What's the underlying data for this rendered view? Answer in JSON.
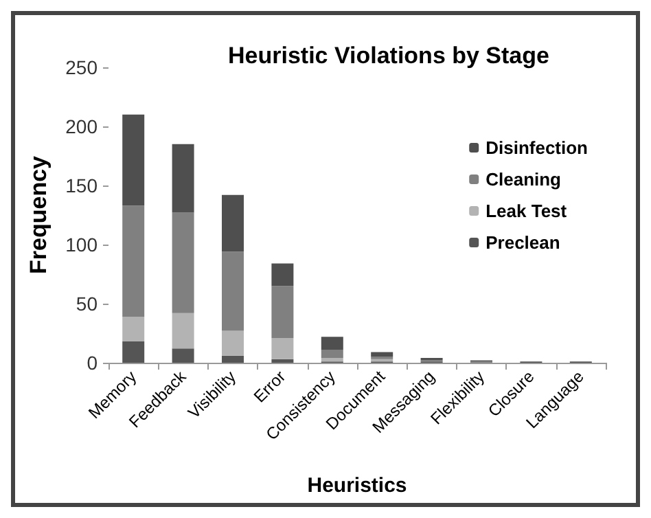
{
  "chart_data": {
    "type": "bar",
    "title": "Heuristic Violations by Stage",
    "xlabel": "Heuristics",
    "ylabel": "Frequency",
    "categories": [
      "Memory",
      "Feedback",
      "Visibility",
      "Error",
      "Consistency",
      "Document",
      "Messaging",
      "Flexibility",
      "Closure",
      "Language"
    ],
    "stacked": true,
    "series": [
      {
        "name": "Preclean",
        "color": "#555555",
        "values": [
          18,
          12,
          6,
          3,
          1,
          1,
          1,
          0,
          0,
          0
        ]
      },
      {
        "name": "Leak Test",
        "color": "#b3b3b3",
        "values": [
          21,
          30,
          21,
          18,
          3,
          2,
          0,
          0,
          0,
          0
        ]
      },
      {
        "name": "Cleaning",
        "color": "#808080",
        "values": [
          94,
          85,
          67,
          44,
          7,
          2,
          1,
          1,
          0,
          0
        ]
      },
      {
        "name": "Disinfection",
        "color": "#4f4f4f",
        "values": [
          77,
          58,
          48,
          19,
          11,
          4,
          2,
          1,
          1,
          1
        ]
      }
    ],
    "ylim": [
      0,
      250
    ],
    "yticks": [
      0,
      50,
      100,
      150,
      200,
      250
    ],
    "grid": false,
    "legend": "right"
  }
}
